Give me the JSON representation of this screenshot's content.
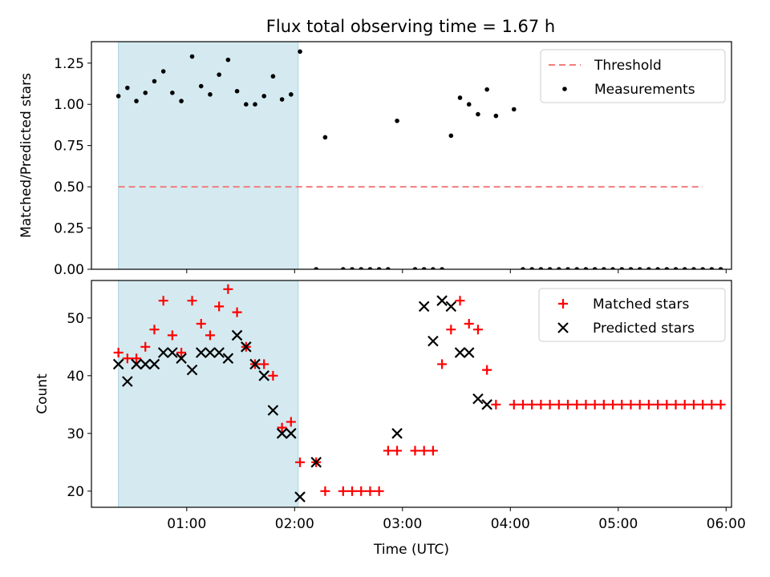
{
  "chart_data": [
    {
      "type": "scatter",
      "title": "Flux total observing time = 1.67 h",
      "ylabel": "Matched/Predicted stars",
      "ylim": [
        0,
        1.38
      ],
      "yticks": [
        0.0,
        0.25,
        0.5,
        0.75,
        1.0,
        1.25
      ],
      "ytick_labels": [
        "0.00",
        "0.25",
        "0.50",
        "0.75",
        "1.00",
        "1.25"
      ],
      "xlim": [
        "00:07",
        "06:03"
      ],
      "shaded_interval": [
        "00:22",
        "02:02"
      ],
      "shade_color": "#d4eaf0",
      "threshold": {
        "name": "Threshold",
        "value": 0.5,
        "x_start": "00:22",
        "x_end": "05:47",
        "color": "#f27c7c"
      },
      "legend_position": "upper right",
      "series": [
        {
          "name": "Measurements",
          "marker": "dot",
          "color": "#000000",
          "x": [
            "00:22",
            "00:27",
            "00:32",
            "00:37",
            "00:42",
            "00:47",
            "00:52",
            "00:57",
            "01:03",
            "01:08",
            "01:13",
            "01:18",
            "01:23",
            "01:28",
            "01:33",
            "01:38",
            "01:43",
            "01:48",
            "01:53",
            "01:58",
            "02:03",
            "02:12",
            "02:17",
            "02:27",
            "02:32",
            "02:37",
            "02:42",
            "02:47",
            "02:52",
            "02:57",
            "03:07",
            "03:12",
            "03:17",
            "03:22",
            "03:27",
            "03:32",
            "03:37",
            "03:42",
            "03:47",
            "03:52",
            "04:02",
            "04:07",
            "04:12",
            "04:17",
            "04:22",
            "04:27",
            "04:32",
            "04:37",
            "04:42",
            "04:47",
            "04:52",
            "04:57",
            "05:02",
            "05:07",
            "05:12",
            "05:17",
            "05:22",
            "05:27",
            "05:32",
            "05:37",
            "05:42",
            "05:47",
            "05:52",
            "05:57"
          ],
          "y": [
            1.05,
            1.1,
            1.02,
            1.07,
            1.14,
            1.2,
            1.07,
            1.02,
            1.29,
            1.11,
            1.06,
            1.18,
            1.27,
            1.08,
            1.0,
            1.0,
            1.05,
            1.17,
            1.03,
            1.06,
            1.32,
            0,
            0.8,
            0,
            0,
            0,
            0,
            0,
            0,
            0.9,
            0,
            0,
            0,
            0,
            0.81,
            1.04,
            1.0,
            0.94,
            1.09,
            0.93,
            0.97,
            0,
            0,
            0,
            0,
            0,
            0,
            0,
            0,
            0,
            0,
            0,
            0,
            0,
            0,
            0,
            0,
            0,
            0,
            0,
            0,
            0,
            0,
            0
          ]
        }
      ]
    },
    {
      "type": "scatter",
      "xlabel": "Time (UTC)",
      "ylabel": "Count",
      "ylim": [
        17.2,
        56.5
      ],
      "yticks": [
        20,
        30,
        40,
        50
      ],
      "ytick_labels": [
        "20",
        "30",
        "40",
        "50"
      ],
      "xlim": [
        "00:07",
        "06:03"
      ],
      "xticks": [
        "01:00",
        "02:00",
        "03:00",
        "04:00",
        "05:00",
        "06:00"
      ],
      "shaded_interval": [
        "00:22",
        "02:02"
      ],
      "shade_color": "#d4eaf0",
      "legend_position": "upper right",
      "series": [
        {
          "name": "Matched stars",
          "marker": "plus",
          "color": "#ff0000",
          "x": [
            "00:22",
            "00:27",
            "00:32",
            "00:37",
            "00:42",
            "00:47",
            "00:52",
            "00:57",
            "01:03",
            "01:08",
            "01:13",
            "01:18",
            "01:23",
            "01:28",
            "01:33",
            "01:38",
            "01:43",
            "01:48",
            "01:53",
            "01:58",
            "02:03",
            "02:12",
            "02:17",
            "02:27",
            "02:32",
            "02:37",
            "02:42",
            "02:47",
            "02:52",
            "02:57",
            "03:07",
            "03:12",
            "03:17",
            "03:22",
            "03:27",
            "03:32",
            "03:37",
            "03:42",
            "03:47",
            "03:52",
            "04:02",
            "04:07",
            "04:12",
            "04:17",
            "04:22",
            "04:27",
            "04:32",
            "04:37",
            "04:42",
            "04:47",
            "04:52",
            "04:57",
            "05:02",
            "05:07",
            "05:12",
            "05:17",
            "05:22",
            "05:27",
            "05:32",
            "05:37",
            "05:42",
            "05:47",
            "05:52",
            "05:57"
          ],
          "y": [
            44,
            43,
            43,
            45,
            48,
            53,
            47,
            44,
            53,
            49,
            47,
            52,
            55,
            51,
            45,
            42,
            42,
            40,
            31,
            32,
            25,
            25,
            20,
            20,
            20,
            20,
            20,
            20,
            27,
            27,
            27,
            27,
            27,
            42,
            48,
            53,
            49,
            48,
            41,
            35,
            35,
            35,
            35,
            35,
            35,
            35,
            35,
            35,
            35,
            35,
            35,
            35,
            35,
            35,
            35,
            35,
            35,
            35,
            35,
            35,
            35,
            35,
            35,
            35
          ]
        },
        {
          "name": "Predicted stars",
          "marker": "x",
          "color": "#000000",
          "x": [
            "00:22",
            "00:27",
            "00:32",
            "00:37",
            "00:42",
            "00:47",
            "00:52",
            "00:57",
            "01:03",
            "01:08",
            "01:13",
            "01:18",
            "01:23",
            "01:28",
            "01:33",
            "01:38",
            "01:43",
            "01:48",
            "01:53",
            "01:58",
            "02:03",
            "02:12",
            "02:57",
            "03:12",
            "03:17",
            "03:22",
            "03:27",
            "03:32",
            "03:37",
            "03:42",
            "03:47"
          ],
          "y": [
            42,
            39,
            42,
            42,
            42,
            44,
            44,
            43,
            41,
            44,
            44,
            44,
            43,
            47,
            45,
            42,
            40,
            34,
            30,
            30,
            19,
            25,
            30,
            52,
            46,
            53,
            52,
            44,
            44,
            36,
            35
          ]
        }
      ]
    }
  ]
}
